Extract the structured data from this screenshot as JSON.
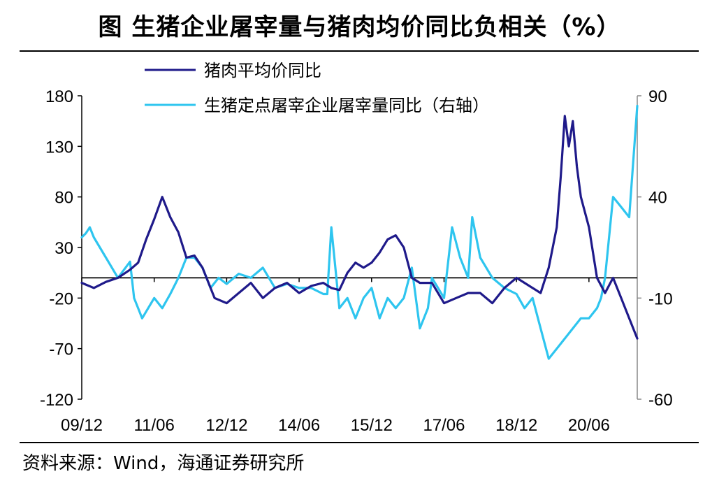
{
  "header": {
    "title": "图  生猪企业屠宰量与猪肉均价同比负相关（%）"
  },
  "footer": {
    "source": "资料来源：Wind，海通证券研究所"
  },
  "chart_data": {
    "type": "line",
    "title": "图  生猪企业屠宰量与猪肉均价同比负相关（%）",
    "x_tick_labels": [
      "09/12",
      "11/06",
      "12/12",
      "14/06",
      "15/12",
      "17/06",
      "18/12",
      "20/06"
    ],
    "x_range": [
      "2009-12",
      "2021-06"
    ],
    "left_axis": {
      "range": [
        -120,
        180
      ],
      "ticks": [
        "180",
        "130",
        "80",
        "30",
        "-20",
        "-70",
        "-120"
      ]
    },
    "right_axis": {
      "range": [
        -60,
        90
      ],
      "ticks": [
        "90",
        "40",
        "-10",
        "-60"
      ]
    },
    "legend": {
      "placement": "top",
      "entries": [
        "猪肉平均价同比",
        "生猪定点屠宰企业屠宰量同比（右轴）"
      ]
    },
    "grid": false,
    "series": [
      {
        "name": "猪肉平均价同比",
        "axis": "left",
        "color": "#1f1a8a",
        "x": [
          "2009-12",
          "2010-03",
          "2010-06",
          "2010-09",
          "2010-12",
          "2011-02",
          "2011-04",
          "2011-06",
          "2011-08",
          "2011-10",
          "2011-12",
          "2012-02",
          "2012-04",
          "2012-06",
          "2012-09",
          "2012-12",
          "2013-03",
          "2013-06",
          "2013-09",
          "2013-12",
          "2014-03",
          "2014-06",
          "2014-09",
          "2014-12",
          "2015-02",
          "2015-04",
          "2015-06",
          "2015-08",
          "2015-10",
          "2015-12",
          "2016-02",
          "2016-04",
          "2016-06",
          "2016-08",
          "2016-10",
          "2016-12",
          "2017-03",
          "2017-06",
          "2017-09",
          "2017-12",
          "2018-03",
          "2018-06",
          "2018-09",
          "2018-12",
          "2019-02",
          "2019-04",
          "2019-06",
          "2019-08",
          "2019-10",
          "2019-11",
          "2019-12",
          "2020-01",
          "2020-02",
          "2020-03",
          "2020-04",
          "2020-06",
          "2020-08",
          "2020-10",
          "2020-12",
          "2021-02",
          "2021-04",
          "2021-06"
        ],
        "values": [
          -5,
          -10,
          -4,
          0,
          8,
          15,
          38,
          58,
          80,
          60,
          45,
          20,
          22,
          10,
          -20,
          -25,
          -15,
          -5,
          -20,
          -10,
          -5,
          -15,
          -8,
          -5,
          -10,
          -12,
          5,
          15,
          10,
          15,
          25,
          38,
          42,
          30,
          0,
          -5,
          -5,
          -25,
          -20,
          -15,
          -15,
          -25,
          -10,
          0,
          -5,
          -10,
          -15,
          10,
          50,
          100,
          160,
          130,
          155,
          110,
          80,
          50,
          0,
          -15,
          0,
          -20,
          -40,
          -60
        ]
      },
      {
        "name": "生猪定点屠宰企业屠宰量同比（右轴）",
        "axis": "right",
        "color": "#2ec5ef",
        "x": [
          "2009-12",
          "2010-01",
          "2010-02",
          "2010-03",
          "2010-06",
          "2010-09",
          "2010-12",
          "2011-01",
          "2011-02",
          "2011-03",
          "2011-06",
          "2011-08",
          "2011-10",
          "2011-12",
          "2012-02",
          "2012-04",
          "2012-06",
          "2012-08",
          "2012-10",
          "2012-12",
          "2013-03",
          "2013-06",
          "2013-09",
          "2013-12",
          "2014-03",
          "2014-06",
          "2014-09",
          "2014-12",
          "2015-01",
          "2015-02",
          "2015-04",
          "2015-06",
          "2015-08",
          "2015-10",
          "2015-12",
          "2016-02",
          "2016-04",
          "2016-06",
          "2016-08",
          "2016-10",
          "2016-12",
          "2017-02",
          "2017-03",
          "2017-06",
          "2017-08",
          "2017-10",
          "2017-12",
          "2018-01",
          "2018-03",
          "2018-06",
          "2018-09",
          "2018-12",
          "2019-02",
          "2019-04",
          "2019-06",
          "2019-08",
          "2019-10",
          "2019-12",
          "2020-02",
          "2020-04",
          "2020-06",
          "2020-08",
          "2020-09",
          "2020-10",
          "2020-12",
          "2021-02",
          "2021-04",
          "2021-06"
        ],
        "values": [
          20,
          22,
          25,
          20,
          10,
          0,
          8,
          -10,
          -15,
          -20,
          -10,
          -15,
          -8,
          0,
          10,
          10,
          5,
          -5,
          0,
          -3,
          2,
          0,
          5,
          -5,
          -3,
          -5,
          -5,
          -8,
          -8,
          25,
          -15,
          -10,
          -20,
          -10,
          -5,
          -20,
          -10,
          -15,
          -10,
          5,
          -25,
          -15,
          0,
          -10,
          25,
          10,
          0,
          30,
          10,
          0,
          -5,
          -8,
          -15,
          -10,
          -25,
          -40,
          -35,
          -30,
          -25,
          -20,
          -20,
          -15,
          -10,
          0,
          40,
          35,
          30,
          85
        ]
      }
    ]
  }
}
